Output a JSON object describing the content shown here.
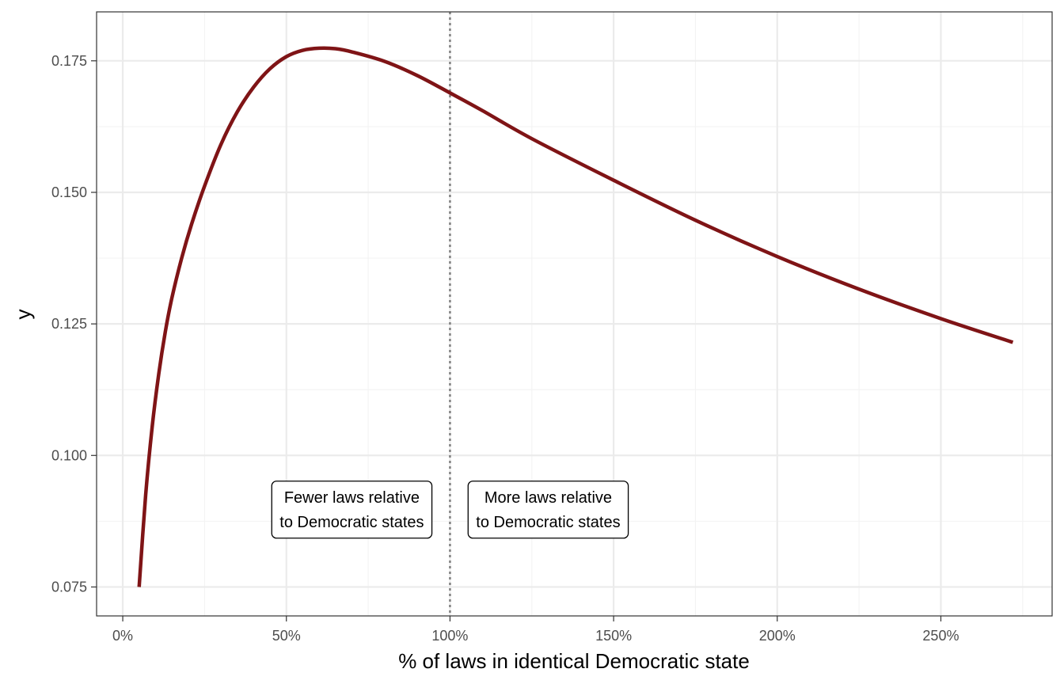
{
  "chart_data": {
    "type": "line",
    "title": "",
    "xlabel": "% of laws in identical Democratic state",
    "ylabel": "y",
    "xlim": [
      -0.08,
      2.84
    ],
    "ylim": [
      0.0695,
      0.1843
    ],
    "x_ticks": [
      0,
      0.5,
      1.0,
      1.5,
      2.0,
      2.5
    ],
    "x_tick_labels": [
      "0%",
      "50%",
      "100%",
      "150%",
      "200%",
      "250%"
    ],
    "y_ticks": [
      0.075,
      0.1,
      0.125,
      0.15,
      0.175
    ],
    "y_tick_labels": [
      "0.075",
      "0.100",
      "0.125",
      "0.150",
      "0.175"
    ],
    "grid": true,
    "series": [
      {
        "color": "#7f1416",
        "x": [
          0.05,
          0.07,
          0.09,
          0.11,
          0.13,
          0.15,
          0.18,
          0.21,
          0.25,
          0.3,
          0.35,
          0.4,
          0.45,
          0.5,
          0.55,
          0.6,
          0.65,
          0.7,
          0.8,
          0.9,
          1.0,
          1.1,
          1.25,
          1.5,
          1.75,
          2.0,
          2.25,
          2.5,
          2.72
        ],
        "y": [
          0.075,
          0.0925,
          0.1055,
          0.1155,
          0.1235,
          0.1299,
          0.1375,
          0.1439,
          0.1512,
          0.1591,
          0.1653,
          0.17,
          0.1735,
          0.1758,
          0.177,
          0.1774,
          0.1773,
          0.1767,
          0.1749,
          0.1722,
          0.1689,
          0.1655,
          0.1602,
          0.1523,
          0.1447,
          0.1378,
          0.1316,
          0.126,
          0.1215
        ]
      }
    ],
    "reference_line": {
      "x": 1.0,
      "style": "dotted",
      "color": "#808080"
    },
    "annotations": [
      {
        "lines": [
          "Fewer laws relative",
          "to Democratic states"
        ],
        "x": 0.7,
        "y": 0.0897
      },
      {
        "lines": [
          "More laws relative",
          "to Democratic states"
        ],
        "x": 1.3,
        "y": 0.0897
      }
    ],
    "panel_background": "#ffffff",
    "grid_major_color": "#ebebeb",
    "grid_minor_color": "#f3f3f3",
    "border_color": "#333333"
  }
}
